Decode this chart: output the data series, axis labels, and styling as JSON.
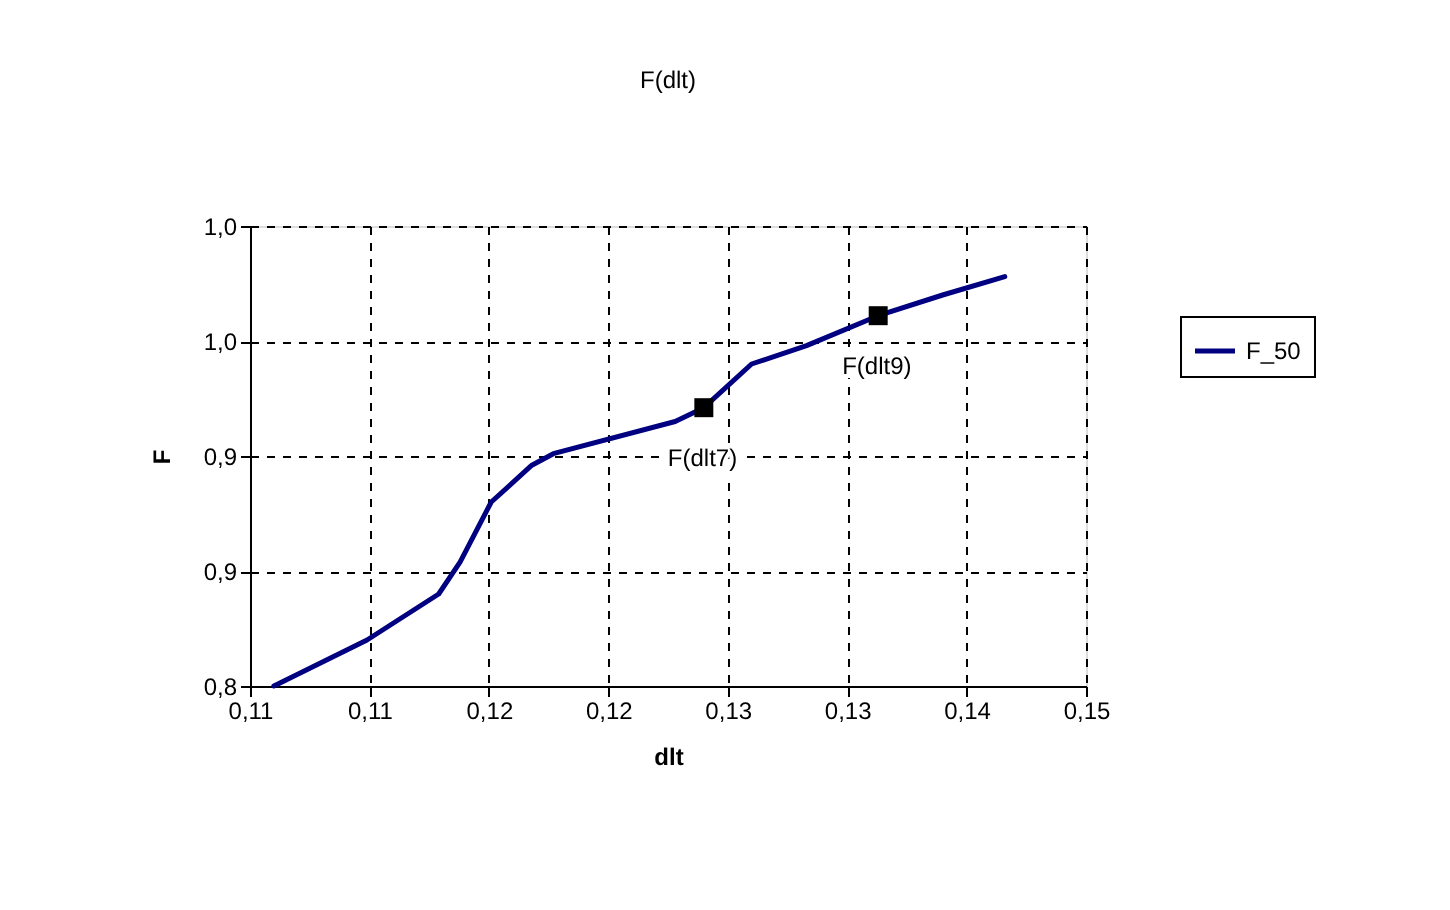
{
  "chart_data": {
    "type": "line",
    "title": "F(dlt)",
    "xlabel": "dlt",
    "ylabel": "F",
    "x": [
      0.111,
      0.1149,
      0.1179,
      0.1188,
      0.1201,
      0.1218,
      0.1227,
      0.1278,
      0.129,
      0.131,
      0.1333,
      0.1363,
      0.139,
      0.1416
    ],
    "series": [
      {
        "name": "F_50",
        "color": "#000080",
        "marker": "none",
        "values": [
          0.8,
          0.82,
          0.84,
          0.854,
          0.88,
          0.896,
          0.901,
          0.915,
          0.921,
          0.94,
          0.948,
          0.961,
          0.97,
          0.978
        ]
      },
      {
        "color": "#000000",
        "type": "scatter",
        "marker": "square",
        "x": [
          0.129,
          0.1363
        ],
        "values": [
          0.921,
          0.961
        ]
      }
    ],
    "annotations": [
      {
        "text": "F(dlt7)",
        "x": 0.129,
        "y": 0.921
      },
      {
        "text": "F(dlt9)",
        "x": 0.1363,
        "y": 0.961
      }
    ],
    "xlim": [
      0.11,
      0.145
    ],
    "ylim": [
      0.8,
      1.0
    ],
    "xticks": [
      {
        "value": 0.11,
        "label": "0,11"
      },
      {
        "value": 0.115,
        "label": "0,11"
      },
      {
        "value": 0.12,
        "label": "0,12"
      },
      {
        "value": 0.125,
        "label": "0,12"
      },
      {
        "value": 0.13,
        "label": "0,13"
      },
      {
        "value": 0.135,
        "label": "0,13"
      },
      {
        "value": 0.14,
        "label": "0,14"
      },
      {
        "value": 0.145,
        "label": "0,15"
      }
    ],
    "yticks": [
      {
        "value": 0.8,
        "label": "0,8"
      },
      {
        "value": 0.85,
        "label": "0,9"
      },
      {
        "value": 0.9,
        "label": "0,9"
      },
      {
        "value": 0.95,
        "label": "1,0"
      },
      {
        "value": 1.0,
        "label": "1,0"
      }
    ],
    "grid": true,
    "legend": "right"
  }
}
